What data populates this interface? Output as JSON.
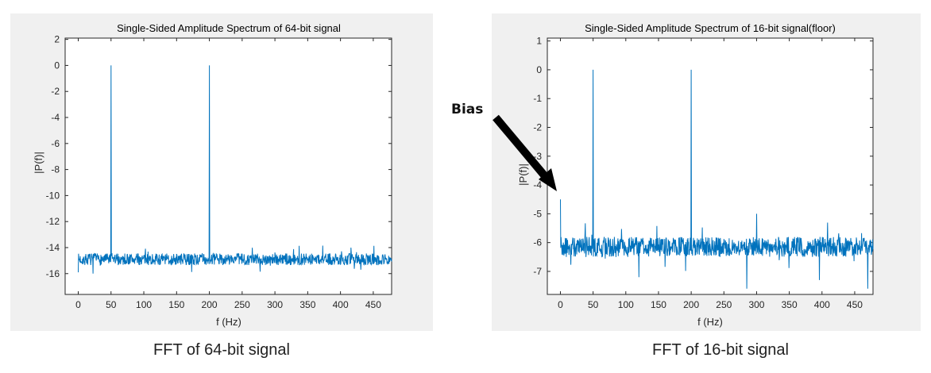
{
  "colors": {
    "line": "#0072bd",
    "arrow": "#000000"
  },
  "captions": [
    "FFT of 64-bit signal",
    "FFT of 16-bit signal"
  ],
  "annotation": {
    "label": "Bias"
  },
  "chart_data": [
    {
      "type": "line",
      "title": "Single-Sided Amplitude Spectrum of 64-bit signal",
      "xlabel": "f (Hz)",
      "ylabel": "|P(f)|",
      "xlim": [
        -20,
        478
      ],
      "ylim": [
        -17.6,
        2.1
      ],
      "xticks": [
        0,
        50,
        100,
        150,
        200,
        250,
        300,
        350,
        400,
        450
      ],
      "yticks": [
        2,
        0,
        -2,
        -4,
        -6,
        -8,
        -10,
        -12,
        -14,
        -16
      ],
      "grid": false,
      "series": [
        {
          "baseline": -14.9,
          "noise_amplitude": 0.45,
          "first_point": -15.9,
          "peaks": [
            {
              "x": 50,
              "y": 0
            },
            {
              "x": 200,
              "y": 0
            }
          ]
        }
      ]
    },
    {
      "type": "line",
      "title": "Single-Sided Amplitude Spectrum of 16-bit signal(floor)",
      "xlabel": "f (Hz)",
      "ylabel": "|P(f)|",
      "xlim": [
        -20,
        478
      ],
      "ylim": [
        -7.8,
        1.1
      ],
      "xticks": [
        0,
        50,
        100,
        150,
        200,
        250,
        300,
        350,
        400,
        450
      ],
      "yticks": [
        1,
        0,
        -1,
        -2,
        -3,
        -4,
        -5,
        -6,
        -7
      ],
      "grid": false,
      "series": [
        {
          "baseline": -6.15,
          "noise_amplitude": 0.35,
          "first_point": -4.5,
          "peaks": [
            {
              "x": 50,
              "y": 0
            },
            {
              "x": 200,
              "y": 0
            },
            {
              "x": 300,
              "y": -5.0
            }
          ],
          "dips": [
            {
              "x": 285,
              "y": -7.6
            },
            {
              "x": 470,
              "y": -7.6
            },
            {
              "x": 120,
              "y": -7.2
            },
            {
              "x": 396,
              "y": -7.3
            }
          ]
        }
      ]
    }
  ]
}
